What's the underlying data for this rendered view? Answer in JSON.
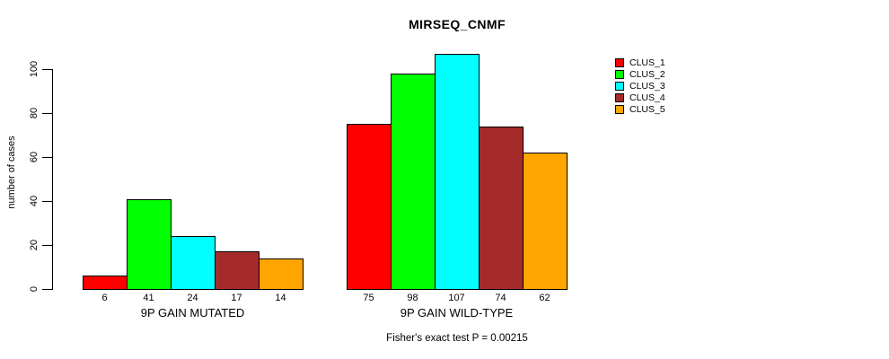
{
  "chart_data": {
    "type": "bar",
    "title": "MIRSEQ_CNMF",
    "ylabel": "number of cases",
    "caption": "Fisher's exact test P = 0.00215",
    "categories": [
      "9P GAIN MUTATED",
      "9P GAIN WILD-TYPE"
    ],
    "series": [
      {
        "name": "CLUS_1",
        "color": "#FF0000",
        "values": [
          6,
          75
        ]
      },
      {
        "name": "CLUS_2",
        "color": "#00FF00",
        "values": [
          41,
          98
        ]
      },
      {
        "name": "CLUS_3",
        "color": "#00FFFF",
        "values": [
          24,
          107
        ]
      },
      {
        "name": "CLUS_4",
        "color": "#A52A2A",
        "values": [
          17,
          74
        ]
      },
      {
        "name": "CLUS_5",
        "color": "#FFA500",
        "values": [
          14,
          62
        ]
      }
    ],
    "yticks": [
      0,
      20,
      40,
      60,
      80,
      100
    ],
    "ylim": [
      0,
      110
    ],
    "grid": false,
    "legend_position": "right",
    "bar_border_color": "#000000"
  }
}
